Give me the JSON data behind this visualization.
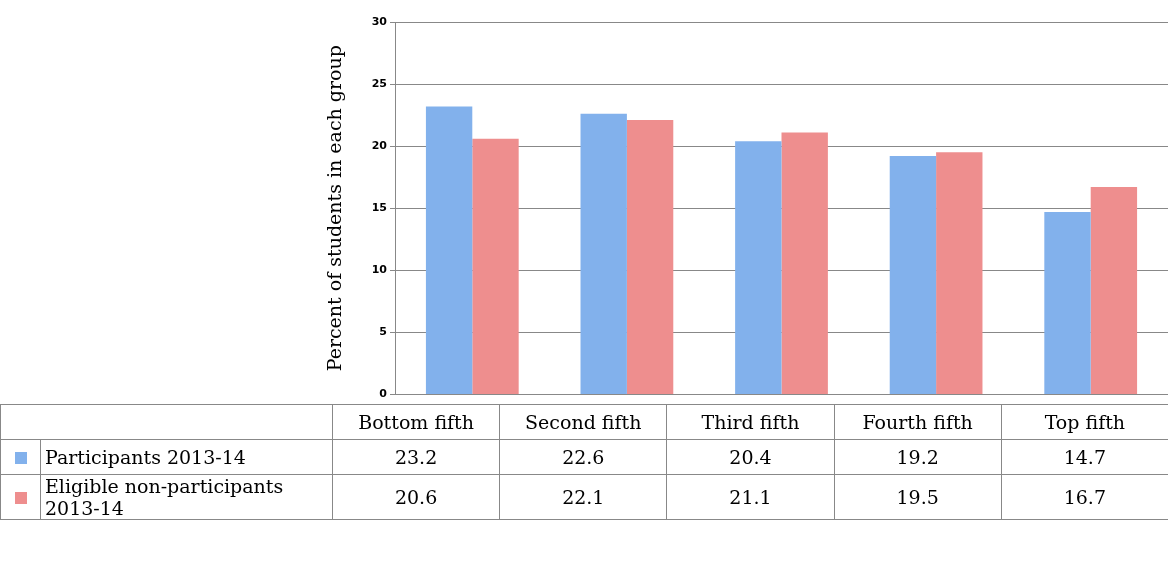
{
  "chart_data": {
    "type": "bar",
    "ylabel": "Percent of students in each group",
    "categories": [
      "Bottom fifth",
      "Second fifth",
      "Third fifth",
      "Fourth fifth",
      "Top fifth"
    ],
    "series": [
      {
        "name": "Participants 2013-14",
        "color": "#82b1ec",
        "values": [
          23.2,
          22.6,
          20.4,
          19.2,
          14.7
        ]
      },
      {
        "name": "Eligible non-participants 2013-14",
        "color": "#ee8e8e",
        "values": [
          20.6,
          22.1,
          21.1,
          19.5,
          16.7
        ]
      }
    ],
    "ylim": [
      0,
      30
    ],
    "yticks": [
      0,
      5,
      10,
      15,
      20,
      25,
      30
    ],
    "grid": "y",
    "data_labels": true,
    "legend": "bottom"
  }
}
